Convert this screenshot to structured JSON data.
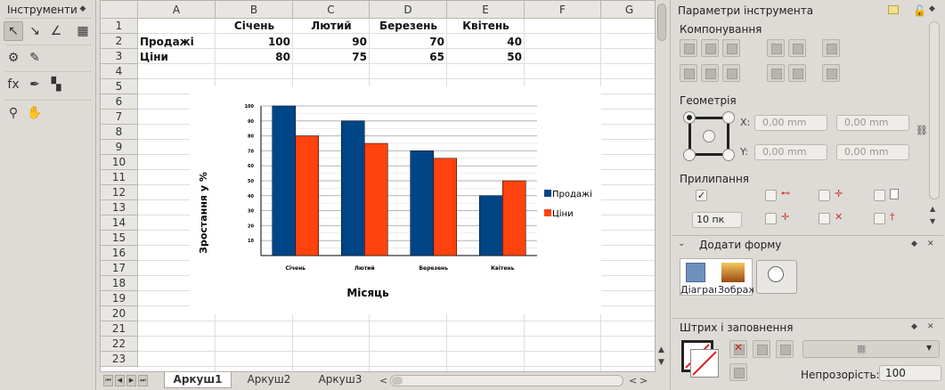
{
  "tools_panel": {
    "title": "Інструменти",
    "dock_icon": "diamond-icon"
  },
  "sheet": {
    "columns": [
      "A",
      "B",
      "C",
      "D",
      "E",
      "F",
      "G"
    ],
    "rows": [
      "1",
      "2",
      "3",
      "4",
      "5",
      "6",
      "7",
      "8",
      "9",
      "10",
      "11",
      "12",
      "13",
      "14",
      "15",
      "16",
      "17",
      "18",
      "19",
      "20",
      "21",
      "22",
      "23"
    ],
    "header_row": [
      "",
      "Січень",
      "Лютий",
      "Березень",
      "Квітень"
    ],
    "data_rows": [
      {
        "label": "Продажі",
        "values": [
          "100",
          "90",
          "70",
          "40"
        ]
      },
      {
        "label": "Ціни",
        "values": [
          "80",
          "75",
          "65",
          "50"
        ]
      }
    ]
  },
  "chart_data": {
    "type": "bar",
    "categories": [
      "Січень",
      "Лютий",
      "Березень",
      "Квітень"
    ],
    "series": [
      {
        "name": "Продажі",
        "values": [
          100,
          90,
          70,
          40
        ],
        "color": "#004586"
      },
      {
        "name": "Ціни",
        "values": [
          80,
          75,
          65,
          50
        ],
        "color": "#ff420e"
      }
    ],
    "yticks": [
      "10",
      "20",
      "30",
      "40",
      "50",
      "60",
      "70",
      "80",
      "90",
      "100"
    ],
    "ylim": [
      0,
      100
    ],
    "xlabel": "Місяць",
    "ylabel": "Зростання у %",
    "grid": true,
    "legend": "right"
  },
  "tabs": {
    "items": [
      "Аркуш1",
      "Аркуш2",
      "Аркуш3"
    ],
    "active": "Аркуш1"
  },
  "tool_options": {
    "title": "Параметри інструмента",
    "layout_section": "Компонування",
    "geometry_section": "Геометрія",
    "x_label": "X:",
    "y_label": "Y:",
    "x_value": "0,00 mm",
    "y_value": "0,00 mm",
    "w_value": "0,00 mm",
    "h_value": "0,00 mm",
    "snap_section": "Прилипання",
    "snap_distance": "10 пк"
  },
  "add_shape": {
    "title": "Додати форму",
    "items": [
      "Діаграма",
      "Зображення"
    ]
  },
  "stroke_fill": {
    "title": "Штрих і заповнення",
    "opacity_label": "Непрозорість:",
    "opacity_value": "100"
  }
}
